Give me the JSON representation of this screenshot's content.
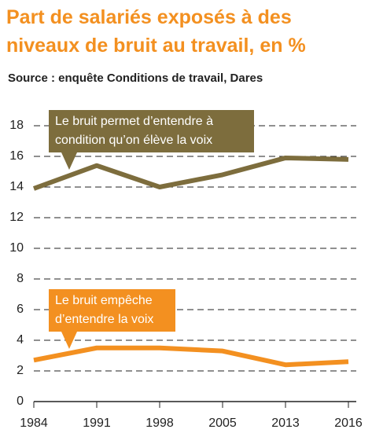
{
  "chart_data": {
    "type": "line",
    "title": "Part de salariés exposés à des niveaux de bruit au travail, en %",
    "source": "Source : enquête Conditions de travail, Dares",
    "categories": [
      "1984",
      "1991",
      "1998",
      "2005",
      "2013",
      "2016"
    ],
    "series": [
      {
        "name": "Le bruit permet d’entendre à condition qu’on élève la voix",
        "color": "#7d6d3d",
        "values": [
          13.9,
          15.4,
          14.0,
          14.8,
          15.9,
          15.8
        ]
      },
      {
        "name": "Le bruit empêche d’entendre la voix",
        "color": "#f39020",
        "values": [
          2.7,
          3.5,
          3.5,
          3.3,
          2.4,
          2.6
        ]
      }
    ],
    "ylim": [
      0,
      18
    ],
    "yticks": [
      0,
      2,
      4,
      6,
      8,
      10,
      12,
      14,
      16,
      18
    ],
    "grid": true
  }
}
